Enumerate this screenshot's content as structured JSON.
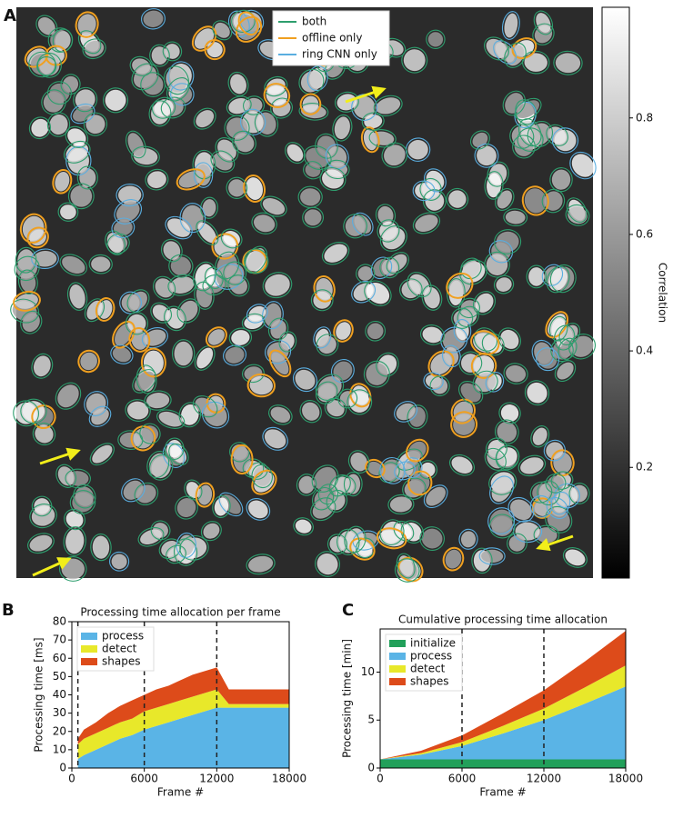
{
  "chart_data": [
    {
      "type": "image",
      "panel": "A",
      "series": [
        {
          "name": "both",
          "color": "#2e9e6e"
        },
        {
          "name": "offline only",
          "color": "#f0a020"
        },
        {
          "name": "ring CNN only",
          "color": "#5aaee0"
        }
      ],
      "colorbar": {
        "label": "Correlation",
        "lim": [
          0.01,
          0.99
        ],
        "ticks": [
          0.2,
          0.4,
          0.6,
          0.8
        ]
      }
    },
    {
      "type": "stacked_area",
      "panel": "B",
      "title": "Processing time allocation per frame",
      "xlabel": "Frame #",
      "ylabel": "Processing time [ms]",
      "x": [
        500,
        1000,
        2000,
        3000,
        4000,
        5000,
        6000,
        7000,
        8000,
        9000,
        10000,
        11000,
        12000,
        13000,
        14000,
        15000,
        16000,
        17000,
        18000
      ],
      "series": [
        {
          "name": "process",
          "color": "#5ab4e6",
          "values": [
            5,
            7,
            10,
            13,
            16,
            18,
            21,
            23,
            25,
            27,
            29,
            31,
            33,
            33,
            33,
            33,
            33,
            33,
            33
          ]
        },
        {
          "name": "detect",
          "color": "#e8e82a",
          "values": [
            8,
            9,
            9,
            9,
            9,
            9,
            10,
            10,
            10,
            10,
            10,
            10,
            10,
            2,
            2,
            2,
            2,
            2,
            2
          ]
        },
        {
          "name": "shapes",
          "color": "#dd4b1a",
          "values": [
            3,
            5,
            6,
            8,
            9,
            10,
            9,
            10,
            10,
            11,
            12,
            12,
            12,
            8,
            8,
            8,
            8,
            8,
            8
          ]
        }
      ],
      "xlim": [
        0,
        18000
      ],
      "xticks": [
        0,
        6000,
        12000,
        18000
      ],
      "ylim": [
        0,
        80
      ],
      "yticks": [
        0,
        10,
        20,
        30,
        40,
        50,
        60,
        70,
        80
      ],
      "vlines": [
        500,
        6000,
        12000
      ],
      "legend": "upper left"
    },
    {
      "type": "stacked_area",
      "panel": "C",
      "title": "Cumulative processing time allocation",
      "xlabel": "Frame #",
      "ylabel": "Processing time [min]",
      "x": [
        0,
        3000,
        6000,
        9000,
        12000,
        15000,
        18000
      ],
      "series": [
        {
          "name": "initialize",
          "color": "#22a05a",
          "values": [
            0.9,
            0.9,
            0.9,
            0.9,
            0.9,
            0.9,
            0.9
          ]
        },
        {
          "name": "process",
          "color": "#5ab4e6",
          "values": [
            0,
            0.5,
            1.4,
            2.7,
            4.1,
            5.8,
            7.6
          ]
        },
        {
          "name": "detect",
          "color": "#e8e82a",
          "values": [
            0,
            0.15,
            0.4,
            0.8,
            1.2,
            1.7,
            2.2
          ]
        },
        {
          "name": "shapes",
          "color": "#dd4b1a",
          "values": [
            0,
            0.25,
            0.7,
            1.3,
            1.9,
            2.7,
            3.6
          ]
        }
      ],
      "xlim": [
        0,
        18000
      ],
      "xticks": [
        0,
        6000,
        12000,
        18000
      ],
      "ylim": [
        0,
        14.5
      ],
      "yticks": [
        0,
        5,
        10
      ],
      "vlines": [
        6000,
        12000
      ],
      "legend": "upper left"
    }
  ]
}
